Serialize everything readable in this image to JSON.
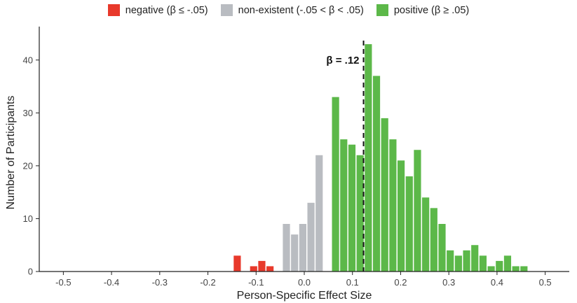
{
  "chart_data": {
    "type": "bar",
    "xlabel": "Person-Specific Effect Size",
    "ylabel": "Number of Participants",
    "xlim": [
      -0.55,
      0.55
    ],
    "ylim": [
      0,
      45
    ],
    "xticks": [
      "-0.5",
      "-0.4",
      "-0.3",
      "-0.2",
      "-0.1",
      "0.0",
      "0.1",
      "0.2",
      "0.3",
      "0.4",
      "0.5"
    ],
    "yticks": [
      "0",
      "10",
      "20",
      "30",
      "40"
    ],
    "bin_width": 0.017,
    "grid": false,
    "legend_position": "top",
    "series": [
      {
        "name": "negative (β ≤ -.05)",
        "color": "#e8392b",
        "bin_centers": [
          -0.138,
          -0.104,
          -0.087,
          -0.07
        ],
        "values": [
          3,
          1,
          2,
          1
        ]
      },
      {
        "name": "non-existent (-.05 < β < .05)",
        "color": "#b9bcc1",
        "bin_centers": [
          -0.036,
          -0.019,
          -0.002,
          0.015,
          0.032
        ],
        "values": [
          9,
          7,
          9,
          13,
          22
        ]
      },
      {
        "name": "positive (β ≥ .05)",
        "color": "#5cb849",
        "bin_centers": [
          0.066,
          0.083,
          0.1,
          0.117,
          0.134,
          0.151,
          0.168,
          0.185,
          0.202,
          0.219,
          0.236,
          0.253,
          0.27,
          0.287,
          0.304,
          0.321,
          0.338,
          0.355,
          0.372,
          0.389,
          0.406,
          0.423,
          0.44,
          0.457
        ],
        "values": [
          33,
          25,
          24,
          22,
          43,
          37,
          29,
          25,
          21,
          18,
          23,
          14,
          12,
          9,
          4,
          3,
          4,
          5,
          3,
          1,
          2,
          3,
          1,
          1
        ]
      }
    ],
    "reference_line": {
      "x": 0.123,
      "label": "β = .12",
      "style": "dashed"
    }
  }
}
